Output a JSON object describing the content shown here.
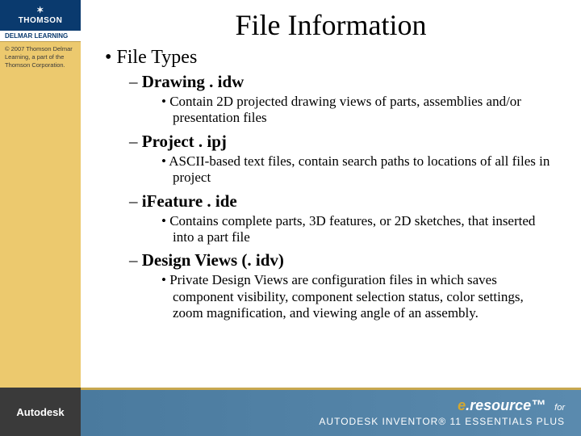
{
  "sidebar": {
    "brand_top": "THOMSON",
    "brand_sub": "DELMAR LEARNING",
    "copyright": "© 2007 Thomson Delmar Learning, a part of the Thomson Corporation."
  },
  "slide": {
    "title": "File Information",
    "bullet1": "File Types",
    "items": [
      {
        "heading": "Drawing . idw",
        "detail": "Contain 2D projected drawing views of parts, assemblies and/or presentation files"
      },
      {
        "heading": "Project . ipj",
        "detail": "ASCII-based text files, contain search paths to locations of all files in project"
      },
      {
        "heading": "iFeature . ide",
        "detail": "Contains complete parts, 3D features, or 2D sketches, that inserted into a part file"
      },
      {
        "heading": "Design Views (. idv)",
        "detail": "Private Design Views are configuration files in which saves component visibility, component selection status, color settings, zoom magnification, and viewing angle of an assembly."
      }
    ]
  },
  "footer": {
    "left_brand": "Autodesk",
    "e_letter": "e",
    "resource_text": ".resource",
    "for_text": "for",
    "product_line": "AUTODESK INVENTOR® 11 ESSENTIALS PLUS"
  },
  "colors": {
    "sidebar_bg": "#ecc96e",
    "sidebar_top_bg": "#0a3a6e",
    "footer_left_bg": "#3a3a3a",
    "footer_right_bg": "#4a7a9e",
    "accent_gold": "#d4a830"
  }
}
